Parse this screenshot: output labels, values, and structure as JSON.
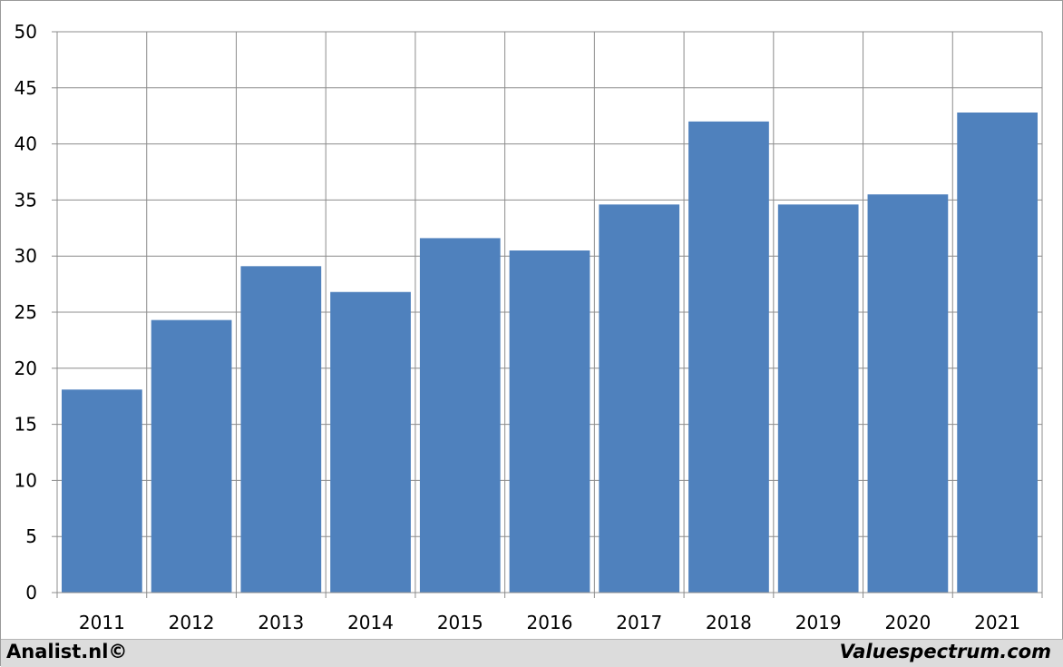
{
  "chart_data": {
    "type": "bar",
    "title": "",
    "xlabel": "",
    "ylabel": "",
    "categories": [
      "2011",
      "2012",
      "2013",
      "2014",
      "2015",
      "2016",
      "2017",
      "2018",
      "2019",
      "2020",
      "2021"
    ],
    "values": [
      18.1,
      24.3,
      29.1,
      26.8,
      31.6,
      30.5,
      34.6,
      42.0,
      34.6,
      35.5,
      42.8
    ],
    "ylim": [
      0,
      50
    ],
    "yticks": [
      0,
      5,
      10,
      15,
      20,
      25,
      30,
      35,
      40,
      45,
      50
    ],
    "grid": "on",
    "bar_color": "#4f81bd",
    "grid_color": "#8c8c8c"
  },
  "footer": {
    "left_text": "Analist.nl©",
    "right_text": "Valuespectrum.com"
  }
}
